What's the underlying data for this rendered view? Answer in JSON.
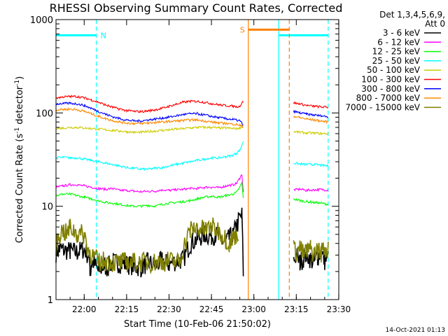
{
  "chart_data": {
    "type": "line",
    "title": "RHESSI Observing Summary Count Rates, Corrected",
    "xlabel": "Start Time (10-Feb-06 21:50:02)",
    "ylabel_main": "Corrected Count Rate (s",
    "ylabel_exp1": "-1",
    "ylabel_mid": " detector",
    "ylabel_exp2": "-1",
    "ylabel_end": ")",
    "y_scale": "log",
    "ylim": [
      1,
      1000
    ],
    "xlim": [
      "21:50:02",
      "23:30:00"
    ],
    "x_ticks": [
      "22:00",
      "22:15",
      "22:30",
      "22:45",
      "23:00",
      "23:15",
      "23:30"
    ],
    "y_ticks": [
      "1",
      "10",
      "100",
      "1000"
    ],
    "legend": {
      "header1": "Det 1,3,4,5,6,9,",
      "header2": "Att 0",
      "placement": "right-top"
    },
    "series": [
      {
        "name": "3 - 6 keV",
        "color": "#000000",
        "segments": [
          {
            "x": [
              0,
              5,
              10,
              20,
              30,
              40,
              45,
              48,
              49,
              50,
              53,
              60,
              68,
              72,
              80,
              100,
              110,
              120,
              130,
              140,
              150,
              160,
              170,
              180,
              190,
              200,
              210,
              220,
              225,
              230,
              235,
              240,
              245,
              250,
              255,
              260,
              263,
              265
            ],
            "y": [
              3.2,
              3.5,
              3.4,
              3.3,
              3.2,
              3.5,
              3.0,
              2.2,
              2.0,
              2.5,
              2.5,
              2.0,
              2.3,
              2.2,
              2.5,
              2.4,
              2.3,
              2.2,
              2.5,
              2.3,
              2.6,
              2.4,
              2.6,
              2.7,
              4.0,
              4.5,
              5.0,
              4.8,
              5.0,
              4.6,
              4.2,
              4.0,
              4.5,
              4.8,
              6.0,
              7.5,
              8.0,
              2.0
            ]
          },
          {
            "x": [
              336,
              340,
              345,
              350,
              355,
              360,
              365,
              370,
              375,
              380,
              385
            ],
            "y": [
              2.6,
              3.0,
              2.5,
              2.8,
              3.1,
              2.7,
              2.5,
              2.9,
              3.2,
              2.6,
              2.8
            ]
          }
        ]
      },
      {
        "name": "6 - 12 keV",
        "color": "#ff00ff",
        "segments": [
          {
            "x": [
              0,
              10,
              20,
              30,
              40,
              50,
              60,
              70,
              80,
              90,
              100,
              110,
              120,
              130,
              140,
              150,
              160,
              170,
              180,
              190,
              200,
              210,
              220,
              230,
              240,
              250,
              255,
              260,
              263,
              265
            ],
            "y": [
              16,
              16.5,
              17,
              17,
              16.5,
              16,
              15.5,
              15.2,
              15.5,
              14.8,
              14.8,
              14.5,
              14.3,
              14.5,
              14.5,
              15,
              14.8,
              15,
              15.2,
              15.5,
              15.5,
              16,
              16,
              15.8,
              16.5,
              17,
              17.5,
              20,
              22,
              14
            ]
          },
          {
            "x": [
              336,
              345,
              355,
              365,
              375,
              385
            ],
            "y": [
              15,
              15.2,
              14.8,
              15,
              15.1,
              14.9
            ]
          }
        ]
      },
      {
        "name": "12 - 25 keV",
        "color": "#00ff00",
        "segments": [
          {
            "x": [
              0,
              10,
              20,
              30,
              40,
              50,
              60,
              70,
              80,
              90,
              100,
              110,
              120,
              130,
              140,
              150,
              160,
              170,
              180,
              190,
              200,
              210,
              220,
              230,
              240,
              250,
              255,
              260,
              263,
              265
            ],
            "y": [
              13,
              13.5,
              13.5,
              13,
              12.5,
              12,
              11.5,
              11,
              10.8,
              10.5,
              10.2,
              10,
              10,
              10.2,
              10,
              10.5,
              10.8,
              11,
              11.2,
              11.5,
              12,
              12.5,
              12.8,
              12.5,
              13,
              13.5,
              14,
              16,
              18,
              12
            ]
          },
          {
            "x": [
              336,
              345,
              355,
              365,
              375,
              385
            ],
            "y": [
              12,
              11.5,
              11.2,
              11,
              10.8,
              10.5
            ]
          }
        ]
      },
      {
        "name": "25 - 50 keV",
        "color": "#00ffff",
        "segments": [
          {
            "x": [
              0,
              10,
              20,
              30,
              40,
              50,
              60,
              70,
              80,
              90,
              100,
              110,
              120,
              130,
              140,
              150,
              160,
              170,
              180,
              190,
              200,
              210,
              220,
              230,
              240,
              250,
              255,
              260,
              263,
              265
            ],
            "y": [
              33,
              33.5,
              33,
              33,
              32,
              31,
              30,
              29,
              28,
              27,
              26,
              25.5,
              25,
              25,
              25.5,
              26,
              27,
              28,
              29,
              30,
              31,
              32,
              33,
              33,
              34,
              35,
              37,
              40,
              45,
              50
            ]
          },
          {
            "x": [
              336,
              345,
              355,
              365,
              375,
              385
            ],
            "y": [
              29,
              28.5,
              28,
              28,
              27.5,
              27
            ]
          }
        ]
      },
      {
        "name": "50 - 100 keV",
        "color": "#cccc00",
        "segments": [
          {
            "x": [
              0,
              10,
              20,
              30,
              40,
              50,
              60,
              70,
              80,
              90,
              100,
              110,
              120,
              130,
              140,
              150,
              160,
              170,
              180,
              190,
              200,
              210,
              220,
              230,
              240,
              250,
              255,
              260,
              263,
              265
            ],
            "y": [
              68,
              69,
              70,
              70,
              69,
              68,
              67,
              66,
              65,
              64,
              63,
              62,
              62,
              63,
              64,
              65,
              66,
              67,
              68,
              69,
              70,
              70,
              70,
              69,
              69,
              68,
              68,
              69,
              72,
              75
            ]
          },
          {
            "x": [
              336,
              345,
              355,
              365,
              375,
              385
            ],
            "y": [
              63,
              62,
              61,
              61,
              60,
              60
            ]
          }
        ]
      },
      {
        "name": "100 - 300 keV",
        "color": "#ff0000",
        "segments": [
          {
            "x": [
              0,
              10,
              20,
              30,
              40,
              50,
              60,
              70,
              80,
              90,
              100,
              110,
              120,
              130,
              140,
              150,
              160,
              170,
              180,
              190,
              200,
              210,
              220,
              230,
              240,
              250,
              255,
              260,
              263,
              265
            ],
            "y": [
              145,
              148,
              150,
              150,
              145,
              138,
              130,
              122,
              115,
              110,
              106,
              104,
              103,
              105,
              108,
              112,
              118,
              124,
              130,
              133,
              133,
              130,
              126,
              122,
              120,
              118,
              117,
              118,
              128,
              132
            ]
          },
          {
            "x": [
              336,
              345,
              355,
              365,
              375,
              385
            ],
            "y": [
              128,
              125,
              120,
              118,
              116,
              115
            ]
          }
        ]
      },
      {
        "name": "300 - 800 keV",
        "color": "#0000ff",
        "segments": [
          {
            "x": [
              0,
              10,
              20,
              30,
              40,
              50,
              60,
              70,
              80,
              90,
              100,
              110,
              120,
              130,
              140,
              150,
              160,
              170,
              180,
              190,
              200,
              210,
              220,
              230,
              240,
              250,
              255,
              260,
              263,
              265
            ],
            "y": [
              125,
              126,
              127,
              125,
              120,
              112,
              104,
              97,
              91,
              87,
              84,
              82,
              82,
              84,
              86,
              88,
              90,
              93,
              96,
              98,
              98,
              95,
              92,
              89,
              87,
              85,
              84,
              82,
              78,
              72
            ]
          },
          {
            "x": [
              336,
              345,
              355,
              365,
              375,
              385
            ],
            "y": [
              104,
              100,
              97,
              95,
              93,
              91
            ]
          }
        ]
      },
      {
        "name": "800 - 7000 keV",
        "color": "#ff8800",
        "segments": [
          {
            "x": [
              0,
              10,
              20,
              30,
              40,
              50,
              60,
              70,
              80,
              90,
              100,
              110,
              120,
              130,
              140,
              150,
              160,
              170,
              180,
              190,
              200,
              210,
              220,
              230,
              240,
              250,
              255,
              260,
              263,
              265
            ],
            "y": [
              108,
              109,
              110,
              108,
              104,
              98,
              92,
              87,
              83,
              80,
              78,
              77,
              77,
              78,
              79,
              80,
              81,
              82,
              83,
              84,
              84,
              82,
              80,
              78,
              77,
              76,
              75,
              74,
              72,
              70
            ]
          },
          {
            "x": [
              336,
              345,
              355,
              365,
              375,
              385
            ],
            "y": [
              92,
              89,
              86,
              84,
              82,
              80
            ]
          }
        ]
      },
      {
        "name": "7000 - 15000 keV",
        "color": "#808000",
        "segments": [
          {
            "x": [
              0,
              5,
              10,
              15,
              20,
              25,
              30,
              40,
              45,
              48,
              50,
              55,
              60,
              70,
              80,
              100,
              120,
              140,
              160,
              175,
              180,
              185,
              190,
              200,
              210,
              220,
              230,
              240,
              245,
              250,
              255,
              258
            ],
            "y": [
              3.8,
              5.0,
              5.5,
              5.0,
              6.0,
              5.5,
              5.0,
              5.0,
              3.5,
              3.2,
              3.0,
              2.8,
              2.5,
              2.6,
              2.5,
              2.5,
              2.5,
              2.5,
              2.6,
              2.5,
              3.5,
              4.5,
              5.5,
              6.0,
              5.5,
              6.0,
              5.5,
              4.5,
              4.0,
              4.5,
              5.0,
              5.5
            ]
          },
          {
            "x": [
              336,
              340,
              345,
              350,
              355,
              360,
              365,
              370,
              375,
              380,
              385
            ],
            "y": [
              3.5,
              3.2,
              3.6,
              3.0,
              3.3,
              3.5,
              3.1,
              3.4,
              3.2,
              3.6,
              3.3
            ]
          }
        ]
      }
    ],
    "flags": [
      {
        "label": "N",
        "color": "#00ffff",
        "y": 680,
        "x_start": 0,
        "x_end": 57,
        "boundaries": [
          {
            "x": 57,
            "dash": true
          }
        ]
      },
      {
        "label": "",
        "color": "#00ffff",
        "y": 680,
        "x_start": 315,
        "x_end": 385,
        "boundaries": [
          {
            "x": 315,
            "dash": false
          },
          {
            "x": 385,
            "dash": true
          }
        ]
      },
      {
        "label": "S",
        "color": "#ff8000",
        "y": 780,
        "x_start": 272,
        "x_end": 330,
        "boundaries": [
          {
            "x": 272,
            "dash": false
          },
          {
            "x": 330,
            "dash": true
          }
        ]
      }
    ],
    "footer_timestamp": "14-Oct-2021 01:13"
  }
}
